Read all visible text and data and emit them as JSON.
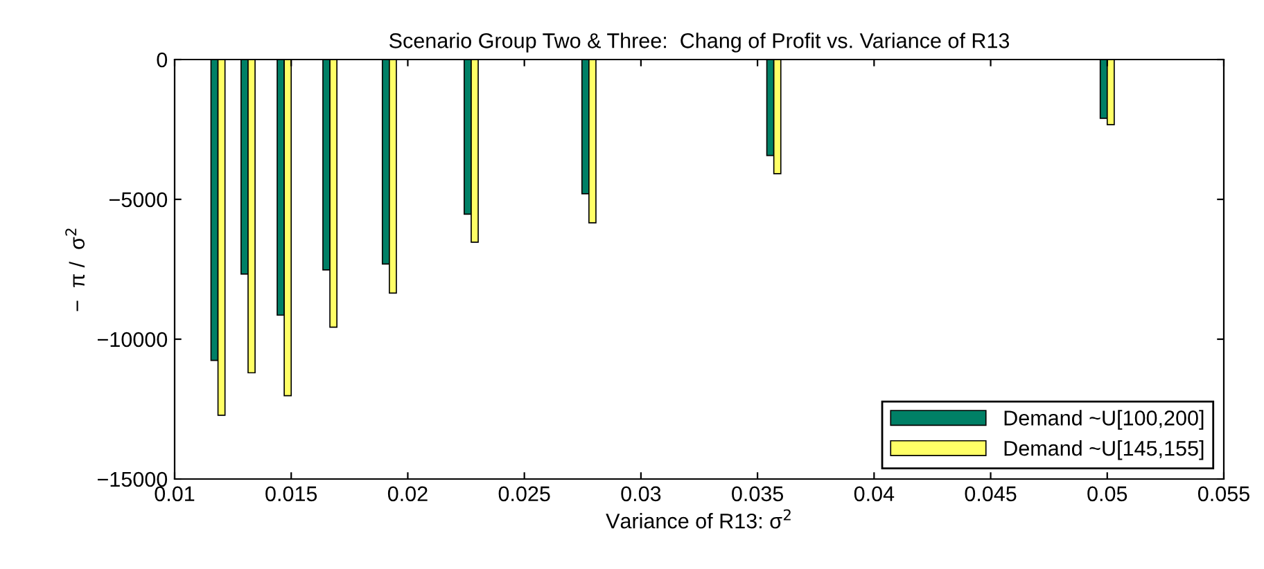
{
  "chart_data": {
    "type": "bar",
    "title": "Scenario Group Two & Three:  Chang of Profit vs. Variance of R13",
    "xlabel": "Variance of R13: σ$^{2}$",
    "ylabel": "−  π /  σ$^{2}$",
    "x": [
      0.01186,
      0.01315,
      0.0147,
      0.01666,
      0.01921,
      0.02272,
      0.02777,
      0.0357,
      0.05
    ],
    "series": [
      {
        "name": "Demand ~U[100,200]",
        "color": "#008066",
        "values": [
          -10760,
          -7670,
          -9140,
          -7520,
          -7310,
          -5530,
          -4800,
          -3430,
          -2100
        ]
      },
      {
        "name": "Demand ~U[145,155]",
        "color": "#ffff66",
        "values": [
          -12720,
          -11200,
          -12020,
          -9570,
          -8350,
          -6530,
          -5840,
          -4080,
          -2330
        ]
      }
    ],
    "xlim": [
      0.01,
      0.055
    ],
    "xticks": [
      0.01,
      0.015,
      0.02,
      0.025,
      0.03,
      0.035,
      0.04,
      0.045,
      0.05,
      0.055
    ],
    "ylim": [
      -15000,
      0
    ],
    "yticks": [
      -15000,
      -10000,
      -5000,
      0
    ],
    "grid": false,
    "legend": "bottom right"
  }
}
